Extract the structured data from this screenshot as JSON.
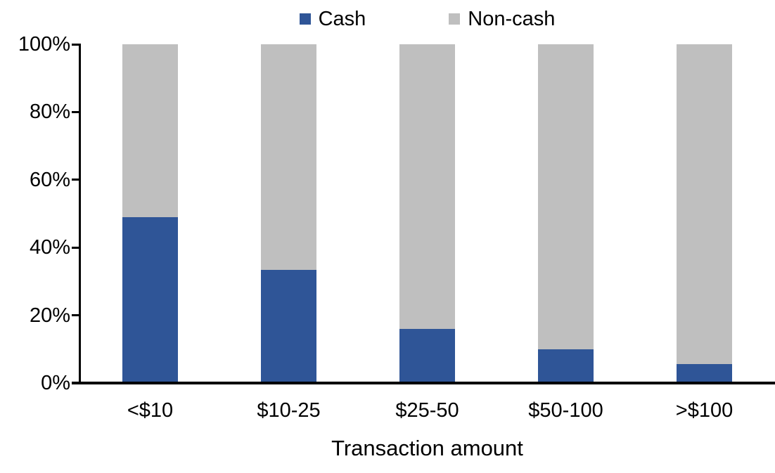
{
  "figure": {
    "background": "#FFFFFF",
    "text_color": "#000000",
    "axis_color": "#000000"
  },
  "chart_data": {
    "type": "bar",
    "stacked": true,
    "stacked_mode": "percent",
    "title": "",
    "xlabel": "Transaction amount",
    "ylabel": "",
    "categories": [
      "<$10",
      "$10-25",
      "$25-50",
      "$50-100",
      ">$100"
    ],
    "series": [
      {
        "name": "Cash",
        "color": "#2F5597",
        "values": [
          49,
          33.5,
          16,
          10,
          5.5
        ]
      },
      {
        "name": "Non-cash",
        "color": "#BFBFBF",
        "values": [
          51,
          66.5,
          84,
          90,
          94.5
        ]
      }
    ],
    "y_axis": {
      "min": 0,
      "max": 100,
      "tick_step": 20,
      "tick_labels": [
        "0%",
        "20%",
        "40%",
        "60%",
        "80%",
        "100%"
      ]
    },
    "legend_position": "top-center",
    "grid": false
  }
}
